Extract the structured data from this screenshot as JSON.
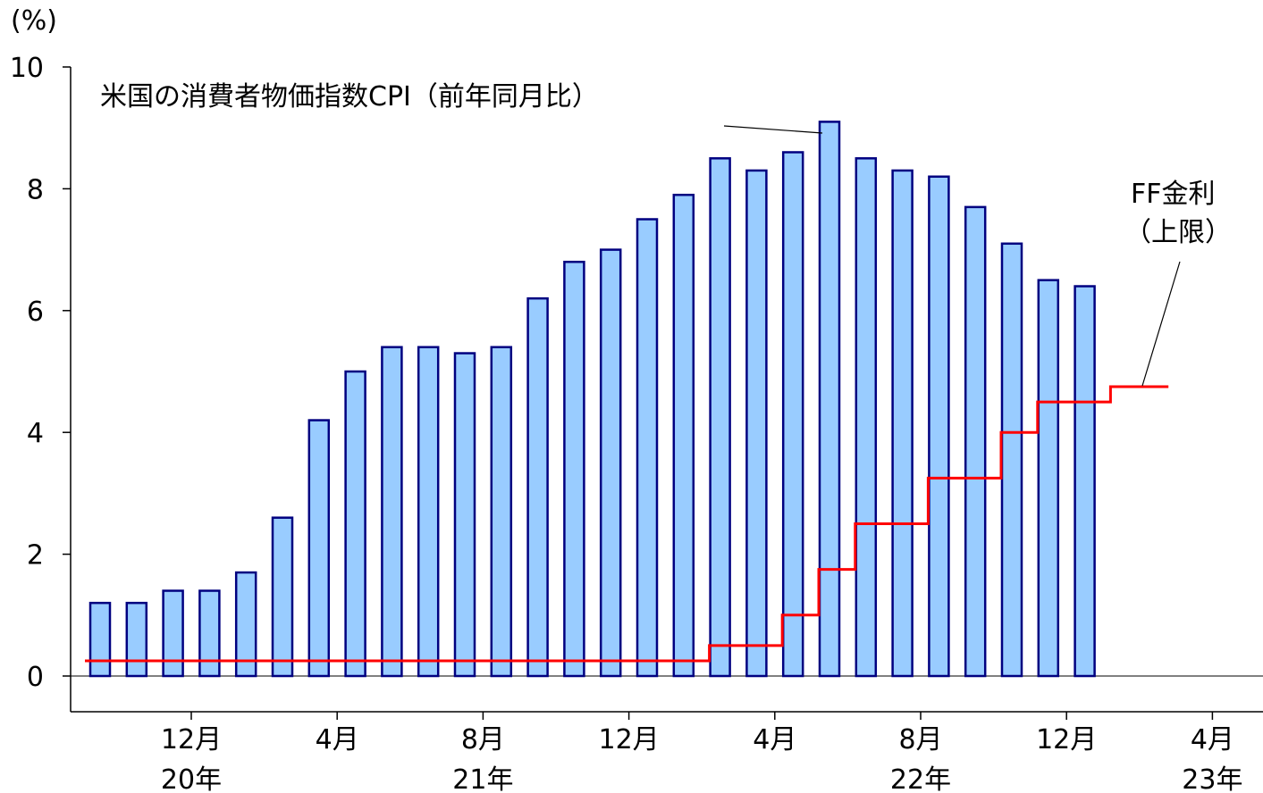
{
  "chart_data": {
    "type": "bar",
    "y_unit": "(%)",
    "ylim": [
      0,
      10
    ],
    "yticks": [
      0,
      2,
      4,
      6,
      8,
      10
    ],
    "grid": false,
    "months": [
      "2020-10",
      "2020-11",
      "2020-12",
      "2021-01",
      "2021-02",
      "2021-03",
      "2021-04",
      "2021-05",
      "2021-06",
      "2021-07",
      "2021-08",
      "2021-09",
      "2021-10",
      "2021-11",
      "2021-12",
      "2022-01",
      "2022-02",
      "2022-03",
      "2022-04",
      "2022-05",
      "2022-06",
      "2022-07",
      "2022-08",
      "2022-09",
      "2022-10",
      "2022-11",
      "2022-12",
      "2023-01",
      "2023-02",
      "2023-03",
      "2023-04",
      "2023-05"
    ],
    "x_tick_labels": [
      {
        "month": "2020-12",
        "label": "12月"
      },
      {
        "month": "2021-04",
        "label": "4月"
      },
      {
        "month": "2021-08",
        "label": "8月"
      },
      {
        "month": "2021-12",
        "label": "12月"
      },
      {
        "month": "2022-04",
        "label": "4月"
      },
      {
        "month": "2022-08",
        "label": "8月"
      },
      {
        "month": "2022-12",
        "label": "12月"
      },
      {
        "month": "2023-04",
        "label": "4月"
      }
    ],
    "year_labels": [
      {
        "month": "2020-12",
        "label": "20年"
      },
      {
        "month": "2021-08",
        "label": "21年"
      },
      {
        "month": "2022-08",
        "label": "22年"
      },
      {
        "month": "2023-04",
        "label": "23年"
      }
    ],
    "series": [
      {
        "name": "米国の消費者物価指数CPI（前年同月比）",
        "type": "bar",
        "color": "#99ccff",
        "edge_color": "#000080",
        "x": [
          "2020-10",
          "2020-11",
          "2020-12",
          "2021-01",
          "2021-02",
          "2021-03",
          "2021-04",
          "2021-05",
          "2021-06",
          "2021-07",
          "2021-08",
          "2021-09",
          "2021-10",
          "2021-11",
          "2021-12",
          "2022-01",
          "2022-02",
          "2022-03",
          "2022-04",
          "2022-05",
          "2022-06",
          "2022-07",
          "2022-08",
          "2022-09",
          "2022-10",
          "2022-11",
          "2022-12",
          "2023-01"
        ],
        "values": [
          1.2,
          1.2,
          1.4,
          1.4,
          1.7,
          2.6,
          4.2,
          5.0,
          5.4,
          5.4,
          5.3,
          5.4,
          6.2,
          6.8,
          7.0,
          7.5,
          7.9,
          8.5,
          8.3,
          8.6,
          9.1,
          8.5,
          8.3,
          8.2,
          7.7,
          7.1,
          6.5,
          6.4
        ]
      },
      {
        "name": "FF金利（上限）",
        "type": "step",
        "color": "#ff0000",
        "x": [
          "2020-10",
          "2022-03",
          "2022-05",
          "2022-06",
          "2022-07",
          "2022-09",
          "2022-11",
          "2022-12",
          "2023-02",
          "2023-03"
        ],
        "values": [
          0.25,
          0.5,
          1.0,
          1.75,
          2.5,
          3.25,
          4.0,
          4.5,
          4.75,
          4.75
        ]
      }
    ],
    "annotations": {
      "cpi_label": "米国の消費者物価指数CPI（前年同月比）",
      "ff_label_line1": "FF金利",
      "ff_label_line2": "（上限）"
    }
  }
}
